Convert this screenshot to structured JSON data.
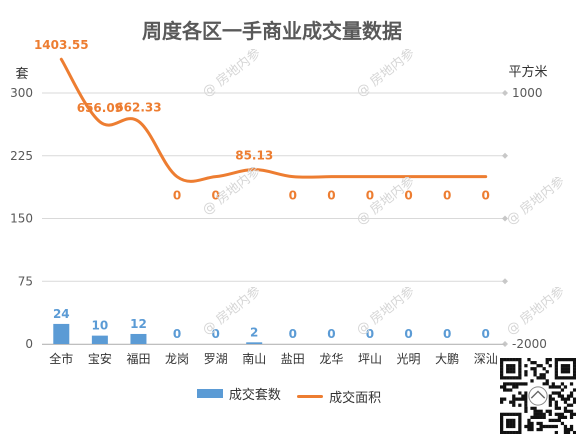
{
  "chart_data": {
    "type": "bar+line",
    "title": "周度各区一手商业成交量数据",
    "categories": [
      "全市",
      "宝安",
      "福田",
      "龙岗",
      "罗湖",
      "南山",
      "盐田",
      "龙华",
      "坪山",
      "光明",
      "大鹏",
      "深汕"
    ],
    "y_left": {
      "label": "套",
      "ticks": [
        0,
        75,
        150,
        225,
        300
      ],
      "ylim": [
        0,
        300
      ]
    },
    "y_right": {
      "label": "平方米",
      "ticks": [
        -2000,
        1000
      ],
      "ylim": [
        -2000,
        1000
      ]
    },
    "series": [
      {
        "name": "成交套数",
        "type": "bar",
        "axis": "left",
        "color": "#5b9bd5",
        "values": [
          24,
          10,
          12,
          0,
          0,
          2,
          0,
          0,
          0,
          0,
          0,
          0
        ],
        "labels": [
          "24",
          "10",
          "12",
          "0",
          "0",
          "2",
          "0",
          "0",
          "0",
          "0",
          "0",
          "0"
        ]
      },
      {
        "name": "成交面积",
        "type": "line",
        "axis": "right",
        "color": "#ed7d31",
        "smooth": true,
        "values": [
          1403.55,
          656.09,
          662.33,
          0,
          0,
          85.13,
          0,
          0,
          0,
          0,
          0,
          0
        ],
        "labels": [
          "1403.55",
          "656.09",
          "662.33",
          "0",
          "0",
          "85.13",
          "0",
          "0",
          "0",
          "0",
          "0",
          "0"
        ]
      }
    ],
    "legend": "bottom",
    "grid": true
  },
  "watermark": "@ 房地内参"
}
